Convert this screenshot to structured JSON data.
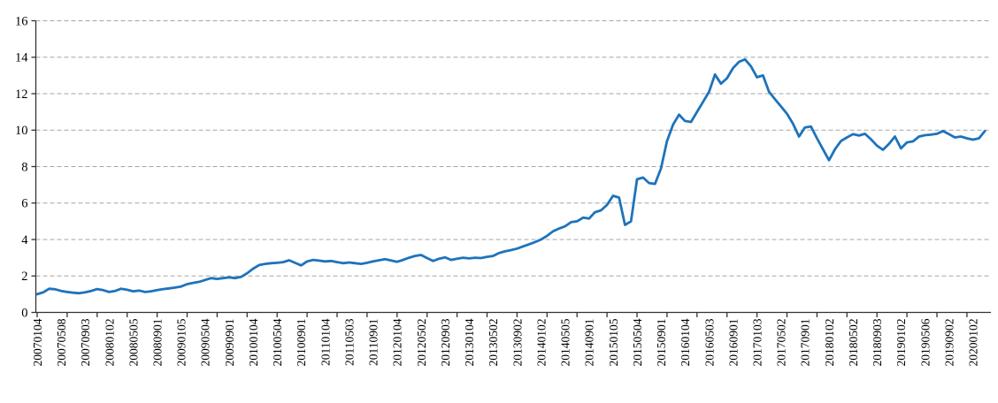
{
  "chart_data": {
    "type": "line",
    "title": "",
    "xlabel": "",
    "ylabel": "",
    "legend": "none",
    "grid": "horizontal-dashed",
    "y_axis": {
      "min": 0,
      "max": 16,
      "step": 2,
      "tick_labels": [
        "0",
        "2",
        "4",
        "6",
        "8",
        "10",
        "12",
        "14",
        "16"
      ]
    },
    "x_axis": {
      "labels": [
        "20070104",
        "20070508",
        "20070903",
        "20080102",
        "20080505",
        "20080901",
        "20090105",
        "20090504",
        "20090901",
        "20100104",
        "20100504",
        "20100901",
        "20110104",
        "20110503",
        "20110901",
        "20120104",
        "20120502",
        "20120903",
        "20130104",
        "20130502",
        "20130902",
        "20140102",
        "20140505",
        "20140901",
        "20150105",
        "20150504",
        "20150901",
        "20160104",
        "20160503",
        "20160901",
        "20170103",
        "20170502",
        "20170901",
        "20180102",
        "20180502",
        "20180903",
        "20190102",
        "20190506",
        "20190902",
        "20200102"
      ],
      "label_every_n_points": 4,
      "tick_every_n_points": 5,
      "label_rotation_deg": 90
    },
    "series": [
      {
        "name": "value",
        "color": "#1e73bb",
        "values": [
          1.0,
          1.1,
          1.3,
          1.27,
          1.18,
          1.12,
          1.08,
          1.05,
          1.1,
          1.18,
          1.28,
          1.22,
          1.12,
          1.18,
          1.3,
          1.24,
          1.16,
          1.2,
          1.12,
          1.16,
          1.22,
          1.28,
          1.32,
          1.36,
          1.42,
          1.55,
          1.62,
          1.68,
          1.78,
          1.88,
          1.84,
          1.88,
          1.92,
          1.88,
          1.95,
          2.15,
          2.4,
          2.6,
          2.66,
          2.7,
          2.72,
          2.76,
          2.86,
          2.72,
          2.58,
          2.8,
          2.88,
          2.84,
          2.8,
          2.82,
          2.76,
          2.7,
          2.74,
          2.7,
          2.66,
          2.72,
          2.8,
          2.86,
          2.92,
          2.85,
          2.78,
          2.88,
          3.0,
          3.1,
          3.15,
          2.98,
          2.82,
          2.95,
          3.02,
          2.88,
          2.95,
          3.0,
          2.96,
          3.0,
          2.98,
          3.05,
          3.1,
          3.26,
          3.35,
          3.42,
          3.5,
          3.62,
          3.74,
          3.86,
          4.0,
          4.2,
          4.45,
          4.6,
          4.72,
          4.95,
          5.0,
          5.2,
          5.15,
          5.5,
          5.6,
          5.9,
          6.4,
          6.3,
          4.8,
          5.0,
          7.3,
          7.4,
          7.1,
          7.05,
          7.9,
          9.4,
          10.3,
          10.85,
          10.5,
          10.45,
          11.0,
          11.55,
          12.1,
          13.05,
          12.55,
          12.85,
          13.4,
          13.75,
          13.88,
          13.5,
          12.9,
          13.0,
          12.1,
          11.7,
          11.3,
          10.9,
          10.35,
          9.65,
          10.15,
          10.2,
          9.55,
          8.95,
          8.35,
          8.95,
          9.4,
          9.6,
          9.78,
          9.7,
          9.8,
          9.5,
          9.15,
          8.92,
          9.25,
          9.65,
          9.0,
          9.33,
          9.38,
          9.65,
          9.72,
          9.75,
          9.8,
          9.95,
          9.78,
          9.6,
          9.65,
          9.55,
          9.48,
          9.55,
          9.95
        ]
      }
    ]
  },
  "style": {
    "line_color": "#1e73bb",
    "grid_color": "#a6a6a6",
    "axis_color": "#333333",
    "text_color": "#000000",
    "background": "#ffffff"
  }
}
